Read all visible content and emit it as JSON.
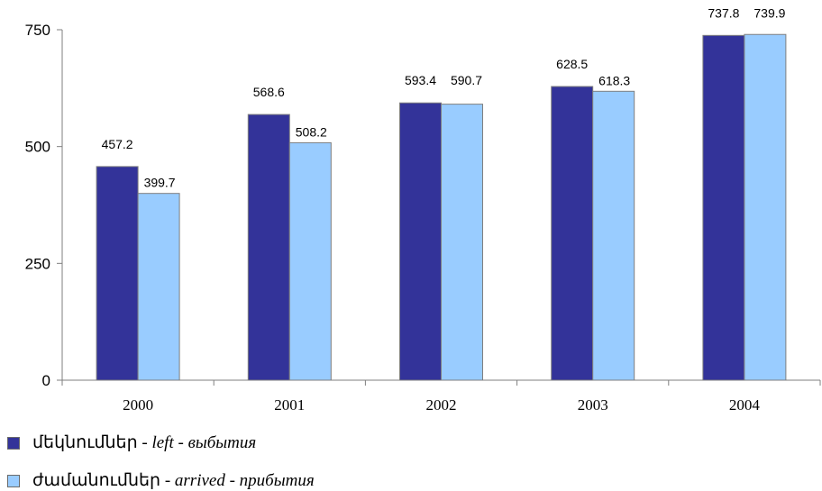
{
  "chart_data": {
    "type": "bar",
    "categories": [
      "2000",
      "2001",
      "2002",
      "2003",
      "2004"
    ],
    "series": [
      {
        "name": "մեկնումներ - left - выбытия",
        "name_parts": [
          "մեկնումներ - ",
          "left",
          " - выбытия"
        ],
        "values": [
          457.2,
          568.6,
          593.4,
          628.5,
          737.8
        ],
        "labels": [
          "457.2",
          "568.6",
          "593.4",
          "628.5",
          "737.8"
        ],
        "color": "#333399"
      },
      {
        "name": "ժամանումներ - arrived - прибытия",
        "name_parts": [
          "ժամանումներ - ",
          "arrived",
          " - прибытия"
        ],
        "values": [
          399.7,
          508.2,
          590.7,
          618.3,
          739.9
        ],
        "labels": [
          "399.7",
          "508.2",
          "590.7",
          "618.3",
          "739.9"
        ],
        "color": "#99ccff"
      }
    ],
    "y_ticks": [
      "0",
      "250",
      "500",
      "750"
    ],
    "ylim": [
      0,
      750
    ],
    "grid": false,
    "legend_position": "bottom-left"
  }
}
